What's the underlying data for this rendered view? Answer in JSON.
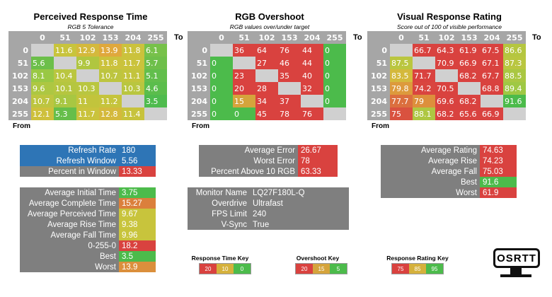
{
  "panels": [
    {
      "title": "Perceived Response Time",
      "subtitle": "RGB 5 Tolerance",
      "cols": [
        "0",
        "51",
        "102",
        "153",
        "204",
        "255"
      ],
      "rows": [
        "0",
        "51",
        "102",
        "153",
        "204",
        "255"
      ],
      "to_label": "To",
      "from_label": "From",
      "cells": [
        [
          [
            "",
            ""
          ],
          [
            "11.6",
            "#c8c43c"
          ],
          [
            "12.9",
            "#d4b93c"
          ],
          [
            "13.9",
            "#e0a83c"
          ],
          [
            "11.8",
            "#cbc23c"
          ],
          [
            "6.1",
            "#77c14a"
          ]
        ],
        [
          [
            "5.6",
            "#6cbf4a"
          ],
          [
            "",
            ""
          ],
          [
            "9.9",
            "#b0c640"
          ],
          [
            "11.8",
            "#cbc23c"
          ],
          [
            "11.7",
            "#cac33c"
          ],
          [
            "5.7",
            "#6ebf4a"
          ]
        ],
        [
          [
            "8.1",
            "#99c844"
          ],
          [
            "10.4",
            "#bac640"
          ],
          [
            "",
            ""
          ],
          [
            "10.7",
            "#bdc540"
          ],
          [
            "11.1",
            "#c3c43c"
          ],
          [
            "5.1",
            "#62be4c"
          ]
        ],
        [
          [
            "9.6",
            "#adc742"
          ],
          [
            "10.1",
            "#b5c640"
          ],
          [
            "10.3",
            "#b9c640"
          ],
          [
            "",
            ""
          ],
          [
            "10.3",
            "#b9c640"
          ],
          [
            "4.6",
            "#5bbd4c"
          ]
        ],
        [
          [
            "10.7",
            "#bdc540"
          ],
          [
            "9.1",
            "#a8c742"
          ],
          [
            "11",
            "#c2c43c"
          ],
          [
            "11.2",
            "#c5c43c"
          ],
          [
            "",
            ""
          ],
          [
            "3.5",
            "#4fbb4e"
          ]
        ],
        [
          [
            "12.1",
            "#cec03c"
          ],
          [
            "5.3",
            "#66be4a"
          ],
          [
            "11.7",
            "#cac33c"
          ],
          [
            "12.8",
            "#d4b93c"
          ],
          [
            "11.4",
            "#c7c33c"
          ],
          [
            "",
            ""
          ]
        ]
      ]
    },
    {
      "title": "RGB Overshoot",
      "subtitle": "RGB values over/under target",
      "cols": [
        "0",
        "51",
        "102",
        "153",
        "204",
        "255"
      ],
      "rows": [
        "0",
        "51",
        "102",
        "153",
        "204",
        "255"
      ],
      "to_label": "To",
      "from_label": "From",
      "cells": [
        [
          [
            "",
            ""
          ],
          [
            "36",
            "#d9423f"
          ],
          [
            "64",
            "#d9423f"
          ],
          [
            "76",
            "#d9423f"
          ],
          [
            "44",
            "#d9423f"
          ],
          [
            "0",
            "#4cbb4b"
          ]
        ],
        [
          [
            "0",
            "#4cbb4b"
          ],
          [
            "",
            ""
          ],
          [
            "27",
            "#d9423f"
          ],
          [
            "46",
            "#d9423f"
          ],
          [
            "44",
            "#d9423f"
          ],
          [
            "0",
            "#4cbb4b"
          ]
        ],
        [
          [
            "0",
            "#4cbb4b"
          ],
          [
            "23",
            "#d9423f"
          ],
          [
            "",
            ""
          ],
          [
            "35",
            "#d9423f"
          ],
          [
            "40",
            "#d9423f"
          ],
          [
            "0",
            "#4cbb4b"
          ]
        ],
        [
          [
            "0",
            "#4cbb4b"
          ],
          [
            "20",
            "#d9423f"
          ],
          [
            "28",
            "#d9423f"
          ],
          [
            "",
            ""
          ],
          [
            "32",
            "#d9423f"
          ],
          [
            "0",
            "#4cbb4b"
          ]
        ],
        [
          [
            "0",
            "#4cbb4b"
          ],
          [
            "15",
            "#d5a43c"
          ],
          [
            "34",
            "#d9423f"
          ],
          [
            "37",
            "#d9423f"
          ],
          [
            "",
            ""
          ],
          [
            "0",
            "#4cbb4b"
          ]
        ],
        [
          [
            "0",
            "#4cbb4b"
          ],
          [
            "0",
            "#4cbb4b"
          ],
          [
            "45",
            "#d9423f"
          ],
          [
            "78",
            "#d9423f"
          ],
          [
            "76",
            "#d9423f"
          ],
          [
            "",
            ""
          ]
        ]
      ]
    },
    {
      "title": "Visual Response Rating",
      "subtitle": "Score out of 100 of visible performance",
      "cols": [
        "0",
        "51",
        "102",
        "153",
        "204",
        "255"
      ],
      "rows": [
        "0",
        "51",
        "102",
        "153",
        "204",
        "255"
      ],
      "to_label": "To",
      "from_label": "From",
      "cells": [
        [
          [
            "",
            ""
          ],
          [
            "66.7",
            "#d9423f"
          ],
          [
            "64.3",
            "#d9423f"
          ],
          [
            "61.9",
            "#d9423f"
          ],
          [
            "67.5",
            "#d9423f"
          ],
          [
            "86.6",
            "#b5c640"
          ]
        ],
        [
          [
            "87.5",
            "#bac640"
          ],
          [
            "",
            ""
          ],
          [
            "70.9",
            "#d9423f"
          ],
          [
            "66.9",
            "#d9423f"
          ],
          [
            "67.1",
            "#d9423f"
          ],
          [
            "87.3",
            "#b9c640"
          ]
        ],
        [
          [
            "83.5",
            "#d4b93c"
          ],
          [
            "71.7",
            "#d9423f"
          ],
          [
            "",
            ""
          ],
          [
            "68.2",
            "#d9423f"
          ],
          [
            "67.7",
            "#d9423f"
          ],
          [
            "88.5",
            "#aac742"
          ]
        ],
        [
          [
            "79.8",
            "#dd9a3c"
          ],
          [
            "74.2",
            "#d9453f"
          ],
          [
            "70.5",
            "#d9423f"
          ],
          [
            "",
            ""
          ],
          [
            "68.8",
            "#d9423f"
          ],
          [
            "89.4",
            "#9fc844"
          ]
        ],
        [
          [
            "77.7",
            "#db6f3e"
          ],
          [
            "79",
            "#dd8f3c"
          ],
          [
            "69.6",
            "#d9423f"
          ],
          [
            "68.2",
            "#d9423f"
          ],
          [
            "",
            ""
          ],
          [
            "91.6",
            "#4cbb4b"
          ]
        ],
        [
          [
            "75",
            "#d9523f"
          ],
          [
            "88.1",
            "#aec742"
          ],
          [
            "68.2",
            "#d9423f"
          ],
          [
            "65.6",
            "#d9423f"
          ],
          [
            "66.9",
            "#d9423f"
          ],
          [
            "",
            ""
          ]
        ]
      ]
    }
  ],
  "stats": {
    "refresh": [
      {
        "label": "Refresh Rate",
        "value": "180",
        "lbg": "#2e75b6",
        "vbg": "#2e75b6"
      },
      {
        "label": "Refresh Window",
        "value": "5.56",
        "lbg": "#2e75b6",
        "vbg": "#2e75b6"
      },
      {
        "label": "Percent in Window",
        "value": "13.33",
        "lbg": "#7f7f7f",
        "vbg": "#d9423f"
      }
    ],
    "times": [
      {
        "label": "Average Initial Time",
        "value": "3.75",
        "vbg": "#4cbb4b"
      },
      {
        "label": "Average Complete Time",
        "value": "15.27",
        "vbg": "#db7f3c"
      },
      {
        "label": "Average Perceived Time",
        "value": "9.67",
        "vbg": "#c8c43c"
      },
      {
        "label": "Average Rise Time",
        "value": "9.38",
        "vbg": "#c8c43c"
      },
      {
        "label": "Average Fall Time",
        "value": "9.96",
        "vbg": "#c8c43c"
      },
      {
        "label": "0-255-0",
        "value": "18.2",
        "vbg": "#d9423f"
      },
      {
        "label": "Best",
        "value": "3.5",
        "vbg": "#4cbb4b"
      },
      {
        "label": "Worst",
        "value": "13.9",
        "vbg": "#db8f3c"
      }
    ],
    "overshoot": [
      {
        "label": "Average Error",
        "value": "26.67",
        "vbg": "#d9423f"
      },
      {
        "label": "Worst Error",
        "value": "78",
        "vbg": "#d9423f"
      },
      {
        "label": "Percent Above 10 RGB",
        "value": "63.33",
        "vbg": "#d9423f"
      }
    ],
    "monitor": [
      {
        "label": "Monitor Name",
        "value": "LQ27F180L-Q"
      },
      {
        "label": "Overdrive",
        "value": "Ultrafast"
      },
      {
        "label": "FPS Limit",
        "value": "240"
      },
      {
        "label": "V-Sync",
        "value": "True"
      }
    ],
    "rating": [
      {
        "label": "Average Rating",
        "value": "74.63",
        "vbg": "#d9423f"
      },
      {
        "label": "Average Rise",
        "value": "74.23",
        "vbg": "#d9423f"
      },
      {
        "label": "Average Fall",
        "value": "75.03",
        "vbg": "#d9423f"
      },
      {
        "label": "Best",
        "value": "91.6",
        "vbg": "#4cbb4b"
      },
      {
        "label": "Worst",
        "value": "61.9",
        "vbg": "#d9423f"
      }
    ]
  },
  "keys": [
    {
      "title": "Response Time Key",
      "items": [
        {
          "v": "20",
          "c": "#d9423f"
        },
        {
          "v": "10",
          "c": "#d5b13c"
        },
        {
          "v": "0",
          "c": "#4cbb4b"
        }
      ]
    },
    {
      "title": "Overshoot Key",
      "items": [
        {
          "v": "20",
          "c": "#d9423f"
        },
        {
          "v": "15",
          "c": "#d5a43c"
        },
        {
          "v": "5",
          "c": "#4cbb4b"
        }
      ]
    },
    {
      "title": "Response Rating Key",
      "items": [
        {
          "v": "75",
          "c": "#d9423f"
        },
        {
          "v": "85",
          "c": "#d5b13c"
        },
        {
          "v": "95",
          "c": "#4cbb4b"
        }
      ]
    }
  ],
  "logo": {
    "text": "OSRTT",
    "icon": "monitor-logo-icon"
  }
}
